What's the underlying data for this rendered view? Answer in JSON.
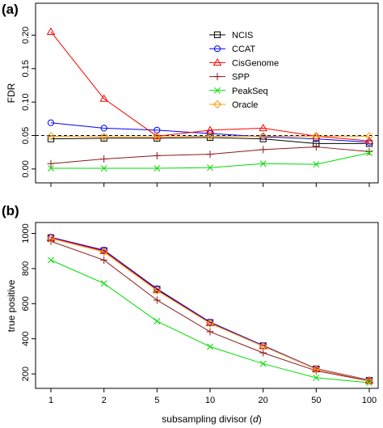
{
  "chart_data": [
    {
      "panel": "(a)",
      "type": "line",
      "ylabel": "FDR",
      "xlabel": "",
      "x_categories": [
        "1",
        "2",
        "5",
        "10",
        "20",
        "50",
        "100"
      ],
      "ylim": [
        -0.005,
        0.215
      ],
      "yticks": [
        0.0,
        0.05,
        0.1,
        0.15,
        0.2
      ],
      "ytick_labels": [
        "0.00",
        "0.05",
        "0.10",
        "0.15",
        "0.20"
      ],
      "reference_line": 0.05,
      "legend_position": "top-right",
      "series": [
        {
          "name": "NCIS",
          "color": "#000000",
          "marker": "square",
          "values": [
            0.045,
            0.046,
            0.046,
            0.047,
            0.045,
            0.038,
            0.038
          ]
        },
        {
          "name": "CCAT",
          "color": "#0000ff",
          "marker": "circle",
          "values": [
            0.069,
            0.061,
            0.058,
            0.053,
            0.048,
            0.045,
            0.04
          ]
        },
        {
          "name": "CisGenome",
          "color": "#ff0000",
          "marker": "triangle",
          "values": [
            0.205,
            0.105,
            0.049,
            0.058,
            0.061,
            0.049,
            0.042
          ]
        },
        {
          "name": "SPP",
          "color": "#8b1a1a",
          "marker": "plus",
          "values": [
            0.008,
            0.015,
            0.02,
            0.022,
            0.029,
            0.033,
            0.026
          ]
        },
        {
          "name": "PeakSeq",
          "color": "#00dd00",
          "marker": "x",
          "values": [
            0.001,
            0.001,
            0.001,
            0.002,
            0.008,
            0.007,
            0.024
          ]
        },
        {
          "name": "Oracle",
          "color": "#ff9900",
          "marker": "diamond",
          "values": [
            0.049,
            0.048,
            0.048,
            0.049,
            0.049,
            0.049,
            0.049
          ]
        }
      ]
    },
    {
      "panel": "(b)",
      "type": "line",
      "ylabel": "true positive",
      "xlabel": "subsampling divisor (",
      "xlabel_var": "d",
      "xlabel_close": ")",
      "x_categories": [
        "1",
        "2",
        "5",
        "10",
        "20",
        "50",
        "100"
      ],
      "ylim": [
        150,
        1030
      ],
      "yticks": [
        200,
        400,
        600,
        800,
        1000
      ],
      "ytick_labels": [
        "200",
        "400",
        "600",
        "800",
        "1000"
      ],
      "series": [
        {
          "name": "NCIS",
          "color": "#000000",
          "marker": "square",
          "values": [
            975,
            902,
            682,
            492,
            360,
            228,
            163
          ]
        },
        {
          "name": "CCAT",
          "color": "#0000ff",
          "marker": "circle",
          "values": [
            978,
            905,
            685,
            495,
            362,
            230,
            165
          ]
        },
        {
          "name": "CisGenome",
          "color": "#ff0000",
          "marker": "triangle",
          "values": [
            975,
            900,
            678,
            490,
            358,
            227,
            162
          ]
        },
        {
          "name": "SPP",
          "color": "#8b1a1a",
          "marker": "plus",
          "values": [
            955,
            848,
            620,
            440,
            320,
            218,
            160
          ]
        },
        {
          "name": "PeakSeq",
          "color": "#00dd00",
          "marker": "x",
          "values": [
            848,
            715,
            500,
            355,
            258,
            178,
            150
          ]
        },
        {
          "name": "Oracle",
          "color": "#ff9900",
          "marker": "diamond",
          "values": [
            972,
            895,
            675,
            488,
            358,
            228,
            163
          ]
        }
      ]
    }
  ]
}
